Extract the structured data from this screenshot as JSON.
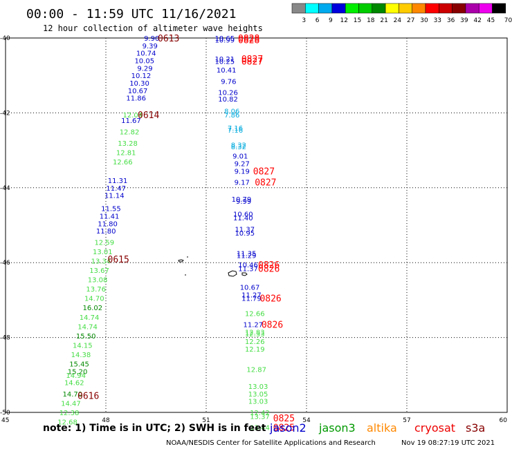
{
  "header": {
    "title": "00:00 - 11:59 UTC 11/16/2021",
    "subtitle": "12 hour collection of altimeter wave heights"
  },
  "colorbar": {
    "colors": [
      "#888888",
      "#00ffff",
      "#00aaee",
      "#0000dd",
      "#00ee00",
      "#00cc00",
      "#008800",
      "#ffff00",
      "#ffcc00",
      "#ff8800",
      "#ff0000",
      "#cc0000",
      "#880000",
      "#aa00aa",
      "#ee00ee",
      "#000000"
    ],
    "labels": [
      "3",
      "6",
      "9",
      "12",
      "15",
      "18",
      "21",
      "24",
      "27",
      "30",
      "33",
      "36",
      "39",
      "42",
      "45",
      "70 (ft)"
    ]
  },
  "footer": {
    "note": "note: 1) Time is in UTC; 2) SWH is in feet",
    "credit": "NOAA/NESDIS Center for Satellite Applications and Research",
    "timestamp": "Nov 19 08:27:19 UTC 2021",
    "satellites": [
      {
        "name": "jason2",
        "color": "#0000cc"
      },
      {
        "name": "jason3",
        "color": "#009900"
      },
      {
        "name": "altika",
        "color": "#ff8800"
      },
      {
        "name": "cryosat",
        "color": "#ee0000"
      },
      {
        "name": "s3a",
        "color": "#880000"
      }
    ]
  },
  "chart_data": {
    "type": "scatter",
    "xlim": [
      45,
      60
    ],
    "ylim": [
      -50,
      -40
    ],
    "xticks": [
      45,
      48,
      51,
      54,
      57,
      60
    ],
    "yticks": [
      -40,
      -42,
      -44,
      -46,
      -48,
      -50
    ],
    "xticklabels": [
      "45",
      "48",
      "51",
      "54",
      "57",
      "60"
    ],
    "yticklabels": [
      "-40",
      "-42",
      "-44",
      "-46",
      "-48",
      "-50"
    ],
    "grid": true,
    "series": [
      {
        "color": "#0000cc",
        "points": [
          {
            "x": 49.6,
            "y": -40.0,
            "label": "9.90"
          },
          {
            "x": 49.55,
            "y": -40.2,
            "label": "9.39"
          },
          {
            "x": 49.5,
            "y": -40.4,
            "label": "10.74"
          },
          {
            "x": 49.45,
            "y": -40.6,
            "label": "10.05"
          },
          {
            "x": 49.4,
            "y": -40.8,
            "label": "9.29"
          },
          {
            "x": 49.35,
            "y": -41.0,
            "label": "10.12"
          },
          {
            "x": 49.3,
            "y": -41.2,
            "label": "10.30"
          },
          {
            "x": 49.25,
            "y": -41.4,
            "label": "10.67"
          },
          {
            "x": 49.2,
            "y": -41.6,
            "label": "11.86"
          },
          {
            "x": 49.05,
            "y": -42.2,
            "label": "11.67"
          },
          {
            "x": 48.65,
            "y": -43.8,
            "label": "11.31"
          },
          {
            "x": 48.6,
            "y": -44.0,
            "label": "11.47"
          },
          {
            "x": 48.55,
            "y": -44.2,
            "label": "11.14"
          },
          {
            "x": 48.45,
            "y": -44.55,
            "label": "11.55"
          },
          {
            "x": 48.4,
            "y": -44.75,
            "label": "11.41"
          },
          {
            "x": 48.35,
            "y": -44.95,
            "label": "11.80"
          },
          {
            "x": 48.3,
            "y": -45.15,
            "label": "11.80"
          },
          {
            "x": 51.85,
            "y": -40.0,
            "label": "10.65"
          },
          {
            "x": 51.85,
            "y": -40.05,
            "label": "10.99"
          },
          {
            "x": 51.85,
            "y": -40.55,
            "label": "10.21"
          },
          {
            "x": 51.85,
            "y": -40.62,
            "label": "10.25"
          },
          {
            "x": 51.9,
            "y": -40.85,
            "label": "10.41"
          },
          {
            "x": 51.9,
            "y": -41.15,
            "label": "9.76"
          },
          {
            "x": 51.95,
            "y": -41.45,
            "label": "10.26"
          },
          {
            "x": 51.95,
            "y": -41.62,
            "label": "10.82"
          },
          {
            "x": 52.25,
            "y": -43.15,
            "label": "9.01"
          },
          {
            "x": 52.3,
            "y": -43.35,
            "label": "9.27"
          },
          {
            "x": 52.3,
            "y": -43.55,
            "label": "9.19"
          },
          {
            "x": 52.3,
            "y": -43.85,
            "label": "9.17"
          },
          {
            "x": 52.35,
            "y": -44.3,
            "label": "10.79"
          },
          {
            "x": 52.35,
            "y": -44.35,
            "label": "9.99"
          },
          {
            "x": 52.4,
            "y": -44.7,
            "label": "10.60"
          },
          {
            "x": 52.4,
            "y": -44.8,
            "label": "11.40"
          },
          {
            "x": 52.45,
            "y": -45.1,
            "label": "11.37"
          },
          {
            "x": 52.45,
            "y": -45.2,
            "label": "10.95"
          },
          {
            "x": 52.5,
            "y": -45.75,
            "label": "11.35"
          },
          {
            "x": 52.5,
            "y": -45.8,
            "label": "11.29"
          },
          {
            "x": 52.55,
            "y": -46.05,
            "label": "10.46"
          },
          {
            "x": 52.55,
            "y": -46.15,
            "label": "11.37"
          },
          {
            "x": 52.6,
            "y": -46.65,
            "label": "10.67"
          },
          {
            "x": 52.65,
            "y": -46.85,
            "label": "11.27"
          },
          {
            "x": 52.65,
            "y": -46.95,
            "label": "11.79"
          },
          {
            "x": 52.7,
            "y": -47.65,
            "label": "11.27"
          }
        ]
      },
      {
        "color": "#00aadd",
        "points": [
          {
            "x": 52.0,
            "y": -41.95,
            "label": "8.06"
          },
          {
            "x": 52.0,
            "y": -42.05,
            "label": "7.86"
          },
          {
            "x": 52.1,
            "y": -42.4,
            "label": "7.16"
          },
          {
            "x": 52.1,
            "y": -42.45,
            "label": "7.16"
          },
          {
            "x": 52.2,
            "y": -42.85,
            "label": "8.32"
          },
          {
            "x": 52.2,
            "y": -42.9,
            "label": "8.32"
          }
        ]
      },
      {
        "color": "#44dd44",
        "points": [
          {
            "x": 49.1,
            "y": -42.05,
            "label": "12.04"
          },
          {
            "x": 49.0,
            "y": -42.5,
            "label": "12.82"
          },
          {
            "x": 48.95,
            "y": -42.8,
            "label": "13.28"
          },
          {
            "x": 48.9,
            "y": -43.05,
            "label": "12.81"
          },
          {
            "x": 48.8,
            "y": -43.3,
            "label": "12.66"
          },
          {
            "x": 48.25,
            "y": -45.45,
            "label": "12.59"
          },
          {
            "x": 48.2,
            "y": -45.7,
            "label": "13.01"
          },
          {
            "x": 48.15,
            "y": -45.95,
            "label": "13.34"
          },
          {
            "x": 48.1,
            "y": -46.2,
            "label": "13.67"
          },
          {
            "x": 48.05,
            "y": -46.45,
            "label": "13.08"
          },
          {
            "x": 48.0,
            "y": -46.7,
            "label": "13.76"
          },
          {
            "x": 47.95,
            "y": -46.95,
            "label": "14.70"
          },
          {
            "x": 47.8,
            "y": -47.45,
            "label": "14.74"
          },
          {
            "x": 47.75,
            "y": -47.7,
            "label": "14.74"
          },
          {
            "x": 47.6,
            "y": -48.2,
            "label": "14.15"
          },
          {
            "x": 47.55,
            "y": -48.45,
            "label": "14.38"
          },
          {
            "x": 47.4,
            "y": -49.0,
            "label": "14.94"
          },
          {
            "x": 47.35,
            "y": -49.2,
            "label": "14.62"
          },
          {
            "x": 47.25,
            "y": -49.75,
            "label": "14.47"
          },
          {
            "x": 47.2,
            "y": -50.0,
            "label": "12.38"
          },
          {
            "x": 47.15,
            "y": -50.25,
            "label": "12.68"
          },
          {
            "x": 52.75,
            "y": -47.35,
            "label": "12.66"
          },
          {
            "x": 52.75,
            "y": -47.85,
            "label": "12.83"
          },
          {
            "x": 52.75,
            "y": -47.9,
            "label": "12.33"
          },
          {
            "x": 52.75,
            "y": -48.1,
            "label": "12.26"
          },
          {
            "x": 52.75,
            "y": -48.3,
            "label": "12.19"
          },
          {
            "x": 52.8,
            "y": -48.85,
            "label": "12.87"
          },
          {
            "x": 52.85,
            "y": -49.3,
            "label": "13.03"
          },
          {
            "x": 52.85,
            "y": -49.5,
            "label": "13.05"
          },
          {
            "x": 52.85,
            "y": -49.7,
            "label": "13.03"
          },
          {
            "x": 52.9,
            "y": -50.0,
            "label": "12.42"
          },
          {
            "x": 52.9,
            "y": -50.1,
            "label": "13.37"
          },
          {
            "x": 52.9,
            "y": -50.4,
            "label": "13.44"
          }
        ]
      },
      {
        "color": "#008800",
        "points": [
          {
            "x": 47.9,
            "y": -47.2,
            "label": "16.02"
          },
          {
            "x": 47.7,
            "y": -47.95,
            "label": "15.50"
          },
          {
            "x": 47.5,
            "y": -48.7,
            "label": "15.45"
          },
          {
            "x": 47.45,
            "y": -48.9,
            "label": "15.20"
          },
          {
            "x": 47.3,
            "y": -49.5,
            "label": "14.70"
          }
        ]
      }
    ],
    "time_labels": [
      {
        "x": 50.2,
        "y": -40.0,
        "label": "0613",
        "color": "#880000"
      },
      {
        "x": 49.6,
        "y": -42.05,
        "label": "0614",
        "color": "#880000"
      },
      {
        "x": 48.7,
        "y": -45.9,
        "label": "0615",
        "color": "#880000"
      },
      {
        "x": 47.8,
        "y": -49.55,
        "label": "0616",
        "color": "#880000"
      },
      {
        "x": 52.6,
        "y": -40.0,
        "label": "0828",
        "color": "#ff0000"
      },
      {
        "x": 52.6,
        "y": -40.05,
        "label": "0828",
        "color": "#ff0000"
      },
      {
        "x": 52.7,
        "y": -40.55,
        "label": "0827",
        "color": "#ff0000"
      },
      {
        "x": 52.7,
        "y": -40.62,
        "label": "0827",
        "color": "#ff0000"
      },
      {
        "x": 53.05,
        "y": -43.55,
        "label": "0827",
        "color": "#ff0000"
      },
      {
        "x": 53.1,
        "y": -43.85,
        "label": "0827",
        "color": "#ff0000"
      },
      {
        "x": 53.2,
        "y": -46.05,
        "label": "0826",
        "color": "#ff0000"
      },
      {
        "x": 53.2,
        "y": -46.15,
        "label": "0826",
        "color": "#ff0000"
      },
      {
        "x": 53.25,
        "y": -46.95,
        "label": "0826",
        "color": "#ff0000"
      },
      {
        "x": 53.3,
        "y": -47.65,
        "label": "0826",
        "color": "#ff0000"
      },
      {
        "x": 53.65,
        "y": -50.15,
        "label": "0825",
        "color": "#ff0000"
      },
      {
        "x": 53.65,
        "y": -50.4,
        "label": "0825",
        "color": "#ff0000"
      }
    ]
  }
}
